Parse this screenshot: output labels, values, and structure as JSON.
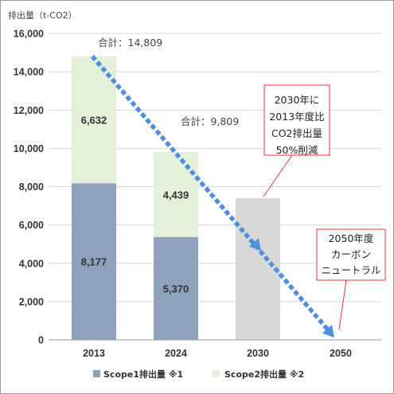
{
  "chart_data": {
    "type": "bar",
    "stacked": true,
    "unit_label": "排出量（t-CO2）",
    "categories": [
      "2013",
      "2024",
      "2030",
      "2050"
    ],
    "series": [
      {
        "name": "Scope1排出量 ※1",
        "color": "#8ea1bd",
        "values": [
          8177,
          5370,
          null,
          null
        ],
        "labels": [
          "8,177",
          "5,370",
          "",
          ""
        ]
      },
      {
        "name": "Scope2排出量 ※2",
        "color": "#e4f0da",
        "values": [
          6632,
          4439,
          null,
          null
        ],
        "labels": [
          "6,632",
          "4,439",
          "",
          ""
        ]
      }
    ],
    "target": {
      "category": "2030",
      "value": 7400,
      "color": "#d9d9d9"
    },
    "totals": [
      {
        "category": "2013",
        "text": "合計：14,809"
      },
      {
        "category": "2024",
        "text": "合計：9,809"
      }
    ],
    "trend_arrow": {
      "from": {
        "category": "2013",
        "value": 14809
      },
      "to": {
        "category": "2050",
        "value": 0
      },
      "color": "#4f8fde"
    },
    "ylim": [
      0,
      16000
    ],
    "yticks": [
      0,
      2000,
      4000,
      6000,
      8000,
      10000,
      12000,
      14000,
      16000
    ],
    "ytick_labels": [
      "0",
      "2,000",
      "4,000",
      "6,000",
      "8,000",
      "10,000",
      "12,000",
      "14,000",
      "16,000"
    ],
    "grid": true,
    "annotations": [
      {
        "lines": [
          "2030年に",
          "2013年度比",
          "CO2排出量",
          "50%削減"
        ],
        "points_to": {
          "category": "2030",
          "value": 7400
        },
        "border_color": "#e8333c"
      },
      {
        "lines": [
          "2050年度",
          "カーボン",
          "ニュートラル"
        ],
        "points_to": {
          "category": "2050",
          "value": 0
        },
        "border_color": "#e8333c"
      }
    ],
    "legend_position": "bottom"
  }
}
